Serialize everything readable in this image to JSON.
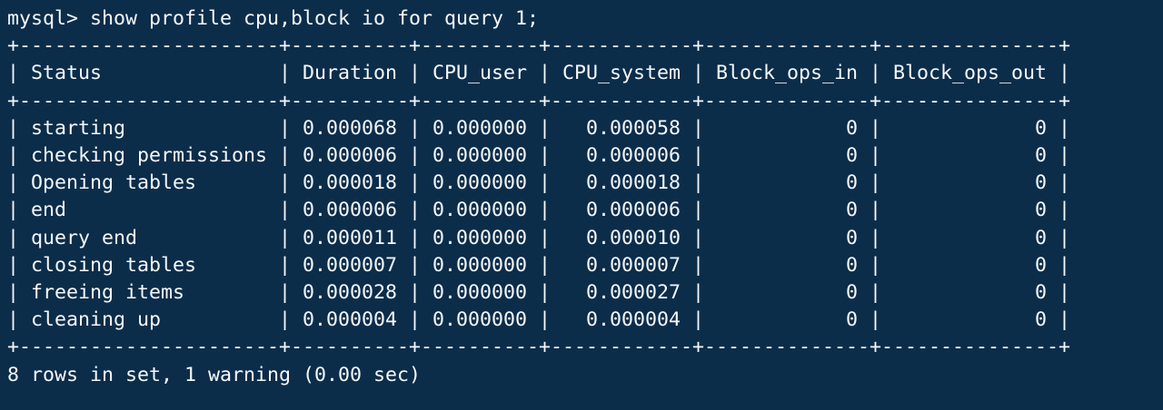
{
  "terminal": {
    "colors": {
      "background": "#0c2d4a",
      "foreground": "#f5f8fa"
    },
    "prompt": "mysql> ",
    "command": "show profile cpu,block io for query 1;",
    "table": {
      "columns": [
        {
          "label": "Status",
          "width": 22,
          "align": "left"
        },
        {
          "label": "Duration",
          "width": 10,
          "align": "right"
        },
        {
          "label": "CPU_user",
          "width": 10,
          "align": "right"
        },
        {
          "label": "CPU_system",
          "width": 12,
          "align": "right"
        },
        {
          "label": "Block_ops_in",
          "width": 14,
          "align": "right"
        },
        {
          "label": "Block_ops_out",
          "width": 15,
          "align": "right"
        }
      ],
      "rows": [
        [
          "starting",
          "0.000068",
          "0.000000",
          "0.000058",
          "0",
          "0"
        ],
        [
          "checking permissions",
          "0.000006",
          "0.000000",
          "0.000006",
          "0",
          "0"
        ],
        [
          "Opening tables",
          "0.000018",
          "0.000000",
          "0.000018",
          "0",
          "0"
        ],
        [
          "end",
          "0.000006",
          "0.000000",
          "0.000006",
          "0",
          "0"
        ],
        [
          "query end",
          "0.000011",
          "0.000000",
          "0.000010",
          "0",
          "0"
        ],
        [
          "closing tables",
          "0.000007",
          "0.000000",
          "0.000007",
          "0",
          "0"
        ],
        [
          "freeing items",
          "0.000028",
          "0.000000",
          "0.000027",
          "0",
          "0"
        ],
        [
          "cleaning up",
          "0.000004",
          "0.000000",
          "0.000004",
          "0",
          "0"
        ]
      ]
    },
    "summary": "8 rows in set, 1 warning (0.00 sec)"
  }
}
